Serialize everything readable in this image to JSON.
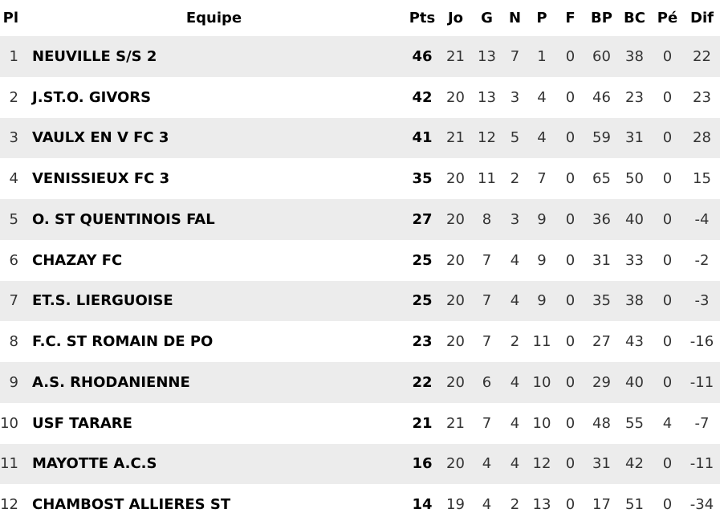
{
  "chart_data": {
    "type": "table",
    "columns": [
      "Pl",
      "Equipe",
      "Pts",
      "Jo",
      "G",
      "N",
      "P",
      "F",
      "BP",
      "BC",
      "Pé",
      "Dif"
    ],
    "column_keys": [
      "pl",
      "equipe",
      "pts",
      "jo",
      "g",
      "n",
      "p",
      "f",
      "bp",
      "bc",
      "pe",
      "dif"
    ],
    "rows": [
      [
        "1",
        "NEUVILLE S/S 2",
        "46",
        "21",
        "13",
        "7",
        "1",
        "0",
        "60",
        "38",
        "0",
        "22"
      ],
      [
        "2",
        "J.ST.O. GIVORS",
        "42",
        "20",
        "13",
        "3",
        "4",
        "0",
        "46",
        "23",
        "0",
        "23"
      ],
      [
        "3",
        "VAULX EN V FC 3",
        "41",
        "21",
        "12",
        "5",
        "4",
        "0",
        "59",
        "31",
        "0",
        "28"
      ],
      [
        "4",
        "VENISSIEUX FC 3",
        "35",
        "20",
        "11",
        "2",
        "7",
        "0",
        "65",
        "50",
        "0",
        "15"
      ],
      [
        "5",
        "O. ST QUENTINOIS FAL",
        "27",
        "20",
        "8",
        "3",
        "9",
        "0",
        "36",
        "40",
        "0",
        "-4"
      ],
      [
        "6",
        "CHAZAY FC",
        "25",
        "20",
        "7",
        "4",
        "9",
        "0",
        "31",
        "33",
        "0",
        "-2"
      ],
      [
        "7",
        "ET.S. LIERGUOISE",
        "25",
        "20",
        "7",
        "4",
        "9",
        "0",
        "35",
        "38",
        "0",
        "-3"
      ],
      [
        "8",
        "F.C. ST ROMAIN DE PO",
        "23",
        "20",
        "7",
        "2",
        "11",
        "0",
        "27",
        "43",
        "0",
        "-16"
      ],
      [
        "9",
        "A.S. RHODANIENNE",
        "22",
        "20",
        "6",
        "4",
        "10",
        "0",
        "29",
        "40",
        "0",
        "-11"
      ],
      [
        "10",
        "USF TARARE",
        "21",
        "21",
        "7",
        "4",
        "10",
        "0",
        "48",
        "55",
        "4",
        "-7"
      ],
      [
        "11",
        "MAYOTTE A.C.S",
        "16",
        "20",
        "4",
        "4",
        "12",
        "0",
        "31",
        "42",
        "0",
        "-11"
      ],
      [
        "12",
        "CHAMBOST ALLIERES ST",
        "14",
        "19",
        "4",
        "2",
        "13",
        "0",
        "17",
        "51",
        "0",
        "-34"
      ]
    ],
    "layout": {
      "grid": false,
      "zebra_striping": true,
      "bold_columns": [
        "equipe",
        "pts"
      ]
    }
  },
  "colors": {
    "background": "#ffffff",
    "row_alt": "#ececec",
    "text_bold": "#000000",
    "text_regular": "#333333"
  }
}
